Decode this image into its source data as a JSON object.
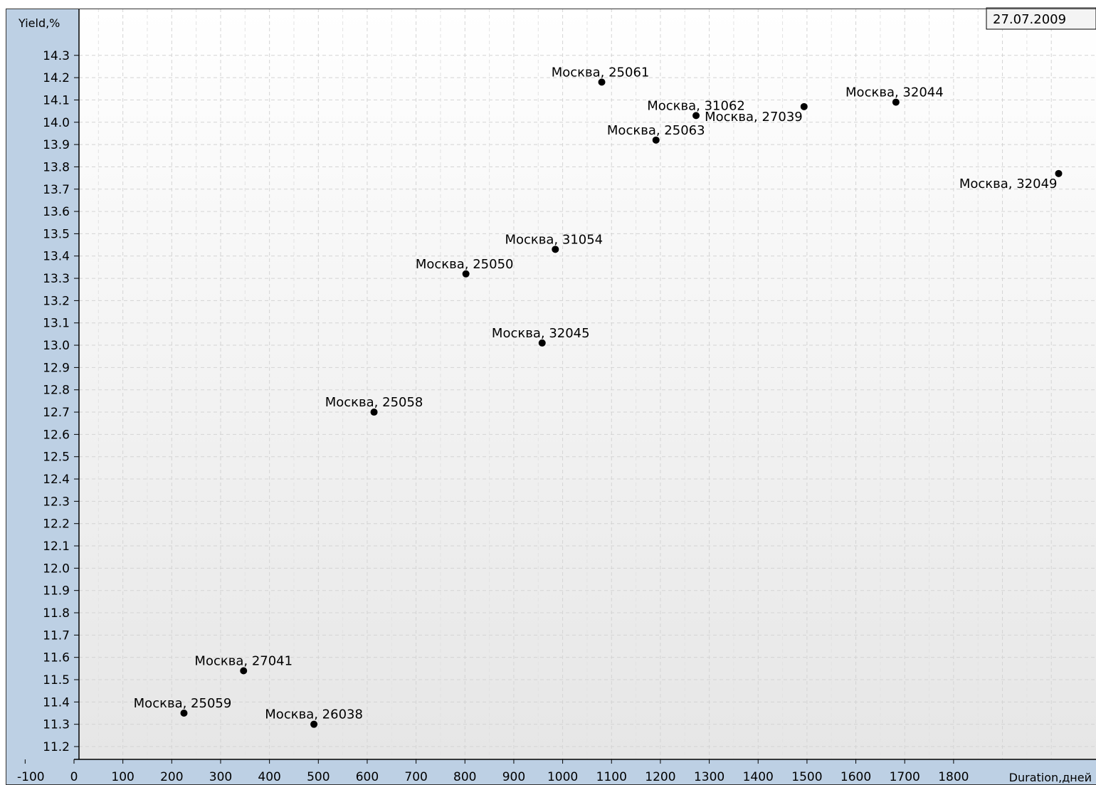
{
  "date_label": "27.07.2009",
  "chart_data": {
    "type": "scatter",
    "ylabel": "Yield,%",
    "xlabel": "Duration,дней",
    "xlim": [
      -100,
      2000
    ],
    "ylim": [
      11.15,
      14.38
    ],
    "x_ticks": [
      -100,
      0,
      100,
      200,
      300,
      400,
      500,
      600,
      700,
      800,
      900,
      1000,
      1100,
      1200,
      1300,
      1400,
      1500,
      1600,
      1700,
      1800
    ],
    "y_ticks": [
      11.2,
      11.3,
      11.4,
      11.5,
      11.6,
      11.7,
      11.8,
      11.9,
      12.0,
      12.1,
      12.2,
      12.3,
      12.4,
      12.5,
      12.6,
      12.7,
      12.8,
      12.9,
      13.0,
      13.1,
      13.2,
      13.3,
      13.4,
      13.5,
      13.6,
      13.7,
      13.8,
      13.9,
      14.0,
      14.1,
      14.2,
      14.3
    ],
    "grid": true,
    "points": [
      {
        "label": "Москва, 25061",
        "x": 1080,
        "y": 14.18,
        "anchor": "above-right"
      },
      {
        "label": "Москва, 31062",
        "x": 1273,
        "y": 14.03,
        "anchor": "above-left"
      },
      {
        "label": "Москва, 27039",
        "x": 1494,
        "y": 14.07,
        "anchor": "below-left"
      },
      {
        "label": "Москва, 32044",
        "x": 1682,
        "y": 14.09,
        "anchor": "above-right"
      },
      {
        "label": "Москва, 25063",
        "x": 1191,
        "y": 13.92,
        "anchor": "above-left"
      },
      {
        "label": "Москва, 32049",
        "x": 2015,
        "y": 13.77,
        "anchor": "below-left"
      },
      {
        "label": "Москва, 31054",
        "x": 985,
        "y": 13.43,
        "anchor": "above-right"
      },
      {
        "label": "Москва, 25050",
        "x": 802,
        "y": 13.32,
        "anchor": "above-right"
      },
      {
        "label": "Москва, 32045",
        "x": 958,
        "y": 13.01,
        "anchor": "above-right"
      },
      {
        "label": "Москва, 25058",
        "x": 614,
        "y": 12.7,
        "anchor": "above-left"
      },
      {
        "label": "Москва, 27041",
        "x": 347,
        "y": 11.54,
        "anchor": "above-left"
      },
      {
        "label": "Москва, 25059",
        "x": 225,
        "y": 11.35,
        "anchor": "above-right"
      },
      {
        "label": "Москва, 26038",
        "x": 491,
        "y": 11.3,
        "anchor": "above-left"
      }
    ]
  }
}
